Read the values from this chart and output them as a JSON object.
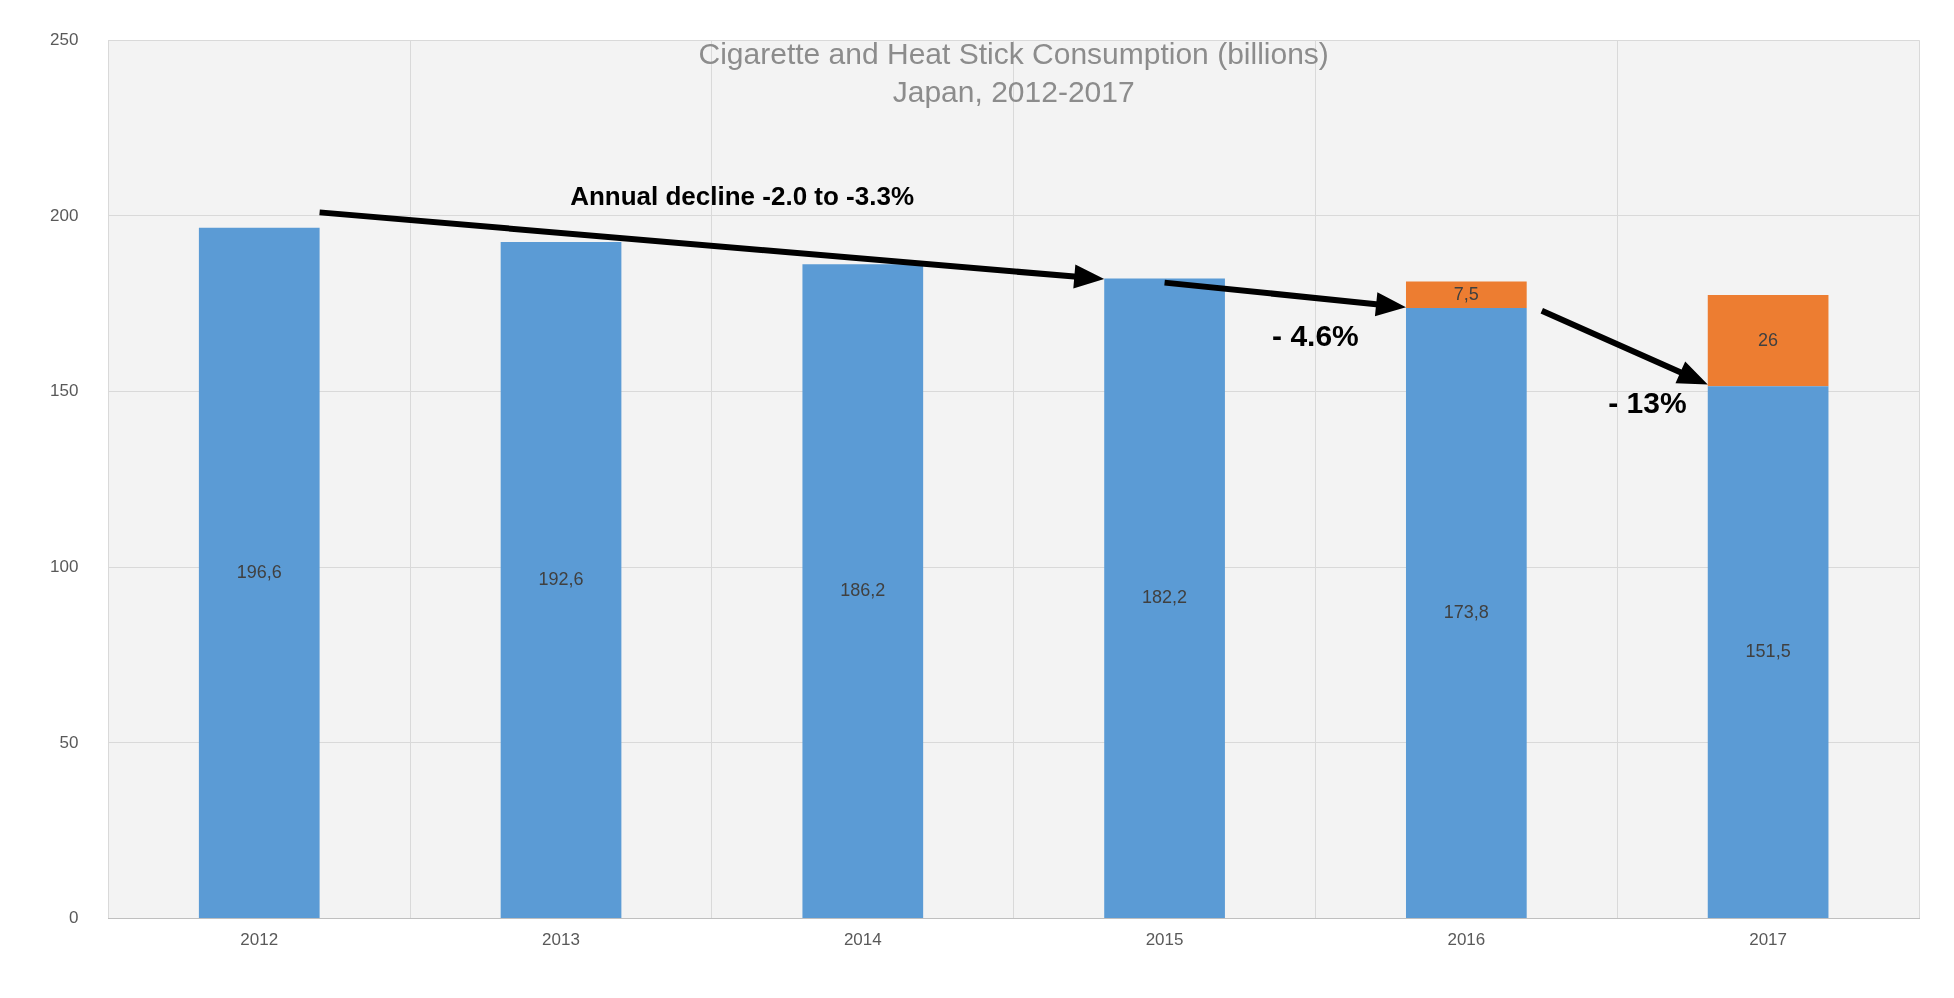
{
  "chart_data": {
    "type": "bar",
    "title": "Cigarette and Heat Stick Consumption (billions)",
    "subtitle": "Japan, 2012-2017",
    "categories": [
      "2012",
      "2013",
      "2014",
      "2015",
      "2016",
      "2017"
    ],
    "stacked": true,
    "series": [
      {
        "color": "#5b9bd5",
        "values": [
          196.6,
          192.6,
          186.2,
          182.2,
          173.8,
          151.5
        ],
        "value_labels": [
          "196,6",
          "192,6",
          "186,2",
          "182,2",
          "173,8",
          "151,5"
        ]
      },
      {
        "color": "#ed7d31",
        "values": [
          null,
          null,
          null,
          null,
          7.5,
          26
        ],
        "value_labels": [
          null,
          null,
          null,
          null,
          "7,5",
          "26"
        ]
      }
    ],
    "ylim": [
      0,
      250
    ],
    "yticks": [
      0,
      50,
      100,
      150,
      200,
      250
    ],
    "grid": true,
    "legend": false,
    "annotations": [
      "Annual decline -2.0 to -3.3%",
      "- 4.6%",
      "- 13%"
    ]
  }
}
